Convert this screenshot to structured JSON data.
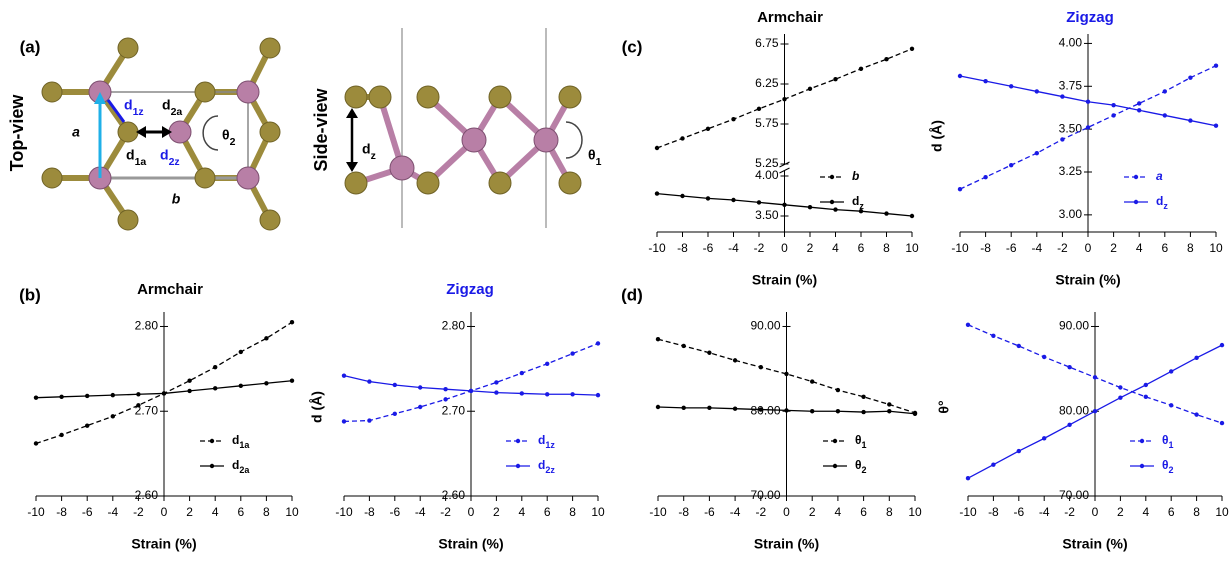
{
  "figure": {
    "panels": [
      "(a)",
      "(b)",
      "(c)",
      "(d)"
    ],
    "top_view": {
      "title": "Top-view",
      "a": "a",
      "b": "b",
      "d1z": "d1z",
      "d2a": "d2a",
      "d1a": "d1a",
      "d2z": "d2z",
      "theta2": "θ2"
    },
    "side_view": {
      "title": "Side-view",
      "dz": "dz",
      "theta1": "θ1"
    }
  },
  "chart_data": [
    {
      "type": "line",
      "title": "Armchair",
      "title_color": "#000000",
      "xlabel": "Strain (%)",
      "x": [
        -10,
        -8,
        -6,
        -4,
        -2,
        0,
        2,
        4,
        6,
        8,
        10
      ],
      "xlim": [
        -10,
        10
      ],
      "xticks": [
        -10,
        -8,
        -6,
        -4,
        -2,
        0,
        2,
        4,
        6,
        8,
        10
      ],
      "ylim": [
        2.6,
        2.81
      ],
      "yticks": [
        {
          "value": 2.6,
          "label": "2.60"
        },
        {
          "value": 2.7,
          "label": "2.70"
        },
        {
          "value": 2.8,
          "label": "2.80"
        }
      ],
      "legend": "lower right",
      "series": [
        {
          "name": "d1a",
          "color": "#000000",
          "linestyle": "dashed",
          "values": [
            2.662,
            2.672,
            2.683,
            2.694,
            2.707,
            2.721,
            2.736,
            2.752,
            2.77,
            2.786,
            2.805
          ]
        },
        {
          "name": "d2a",
          "color": "#000000",
          "linestyle": "solid",
          "values": [
            2.716,
            2.717,
            2.718,
            2.719,
            2.72,
            2.721,
            2.724,
            2.727,
            2.73,
            2.733,
            2.736
          ]
        }
      ]
    },
    {
      "type": "line",
      "title": "Zigzag",
      "title_color": "#1a1ae6",
      "xlabel": "Strain (%)",
      "ylabel": "d (Å)",
      "x": [
        -10,
        -8,
        -6,
        -4,
        -2,
        0,
        2,
        4,
        6,
        8,
        10
      ],
      "xlim": [
        -10,
        10
      ],
      "xticks": [
        -10,
        -8,
        -6,
        -4,
        -2,
        0,
        2,
        4,
        6,
        8,
        10
      ],
      "ylim": [
        2.6,
        2.81
      ],
      "yticks": [
        {
          "value": 2.6,
          "label": "2.60"
        },
        {
          "value": 2.7,
          "label": "2.70"
        },
        {
          "value": 2.8,
          "label": "2.80"
        }
      ],
      "legend": "lower right",
      "series": [
        {
          "name": "d1z",
          "color": "#1a1ae6",
          "linestyle": "dashed",
          "values": [
            2.688,
            2.689,
            2.697,
            2.705,
            2.714,
            2.724,
            2.734,
            2.745,
            2.756,
            2.768,
            2.78
          ]
        },
        {
          "name": "d2z",
          "color": "#1a1ae6",
          "linestyle": "solid",
          "values": [
            2.742,
            2.735,
            2.731,
            2.728,
            2.726,
            2.724,
            2.722,
            2.721,
            2.72,
            2.72,
            2.719
          ]
        }
      ]
    },
    {
      "type": "line",
      "title": "Armchair",
      "title_color": "#000000",
      "xlabel": "Strain (%)",
      "x": [
        -10,
        -8,
        -6,
        -4,
        -2,
        0,
        2,
        4,
        6,
        8,
        10
      ],
      "xlim": [
        -10,
        10
      ],
      "xticks": [
        -10,
        -8,
        -6,
        -4,
        -2,
        0,
        2,
        4,
        6,
        8,
        10
      ],
      "ylim": [
        3.3,
        6.8
      ],
      "ybreak": [
        4.1,
        5.2
      ],
      "yticks": [
        {
          "value": 3.5,
          "label": "3.50"
        },
        {
          "value": 4.0,
          "label": "4.00"
        },
        {
          "value": 5.25,
          "label": "5.25"
        },
        {
          "value": 5.75,
          "label": "5.75"
        },
        {
          "value": 6.25,
          "label": "6.25"
        },
        {
          "value": 6.75,
          "label": "6.75"
        }
      ],
      "legend": "lower right",
      "series": [
        {
          "name": "b",
          "color": "#000000",
          "linestyle": "dashed",
          "values": [
            5.45,
            5.57,
            5.69,
            5.81,
            5.94,
            6.06,
            6.19,
            6.31,
            6.44,
            6.56,
            6.69
          ]
        },
        {
          "name": "dz",
          "color": "#000000",
          "linestyle": "solid",
          "values": [
            3.78,
            3.75,
            3.72,
            3.7,
            3.67,
            3.64,
            3.61,
            3.58,
            3.56,
            3.53,
            3.5
          ]
        }
      ]
    },
    {
      "type": "line",
      "title": "Zigzag",
      "title_color": "#1a1ae6",
      "xlabel": "Strain (%)",
      "ylabel": "d (Å)",
      "x": [
        -10,
        -8,
        -6,
        -4,
        -2,
        0,
        2,
        4,
        6,
        8,
        10
      ],
      "xlim": [
        -10,
        10
      ],
      "xticks": [
        -10,
        -8,
        -6,
        -4,
        -2,
        0,
        2,
        4,
        6,
        8,
        10
      ],
      "ylim": [
        2.9,
        4.02
      ],
      "yticks": [
        {
          "value": 3.0,
          "label": "3.00"
        },
        {
          "value": 3.25,
          "label": "3.25"
        },
        {
          "value": 3.5,
          "label": "3.50"
        },
        {
          "value": 3.75,
          "label": "3.75"
        },
        {
          "value": 4.0,
          "label": "4.00"
        }
      ],
      "legend": "lower right",
      "series": [
        {
          "name": "a",
          "color": "#1a1ae6",
          "linestyle": "dashed",
          "values": [
            3.15,
            3.22,
            3.29,
            3.36,
            3.44,
            3.51,
            3.58,
            3.65,
            3.72,
            3.8,
            3.87
          ]
        },
        {
          "name": "dz",
          "color": "#1a1ae6",
          "linestyle": "solid",
          "values": [
            3.81,
            3.78,
            3.75,
            3.72,
            3.69,
            3.66,
            3.64,
            3.61,
            3.58,
            3.55,
            3.52
          ]
        }
      ]
    },
    {
      "type": "line",
      "xlabel": "Strain (%)",
      "x": [
        -10,
        -8,
        -6,
        -4,
        -2,
        0,
        2,
        4,
        6,
        8,
        10
      ],
      "xlim": [
        -10,
        10
      ],
      "xticks": [
        -10,
        -8,
        -6,
        -4,
        -2,
        0,
        2,
        4,
        6,
        8,
        10
      ],
      "ylim": [
        70,
        91
      ],
      "yticks": [
        {
          "value": 70,
          "label": "70.00"
        },
        {
          "value": 80,
          "label": "80.00"
        },
        {
          "value": 90,
          "label": "90.00"
        }
      ],
      "legend": "lower right",
      "series": [
        {
          "name": "θ1",
          "color": "#000000",
          "linestyle": "dashed",
          "values": [
            88.5,
            87.7,
            86.9,
            86.0,
            85.2,
            84.4,
            83.5,
            82.5,
            81.7,
            80.8,
            79.8
          ]
        },
        {
          "name": "θ2",
          "color": "#000000",
          "linestyle": "solid",
          "values": [
            80.5,
            80.4,
            80.4,
            80.3,
            80.2,
            80.1,
            80.0,
            80.0,
            79.9,
            80.0,
            79.7
          ]
        }
      ]
    },
    {
      "type": "line",
      "xlabel": "Strain (%)",
      "ylabel": "θ°",
      "x": [
        -10,
        -8,
        -6,
        -4,
        -2,
        0,
        2,
        4,
        6,
        8,
        10
      ],
      "xlim": [
        -10,
        10
      ],
      "xticks": [
        -10,
        -8,
        -6,
        -4,
        -2,
        0,
        2,
        4,
        6,
        8,
        10
      ],
      "ylim": [
        70,
        91
      ],
      "yticks": [
        {
          "value": 70,
          "label": "70.00"
        },
        {
          "value": 80,
          "label": "80.00"
        },
        {
          "value": 90,
          "label": "90.00"
        }
      ],
      "legend": "lower right",
      "series": [
        {
          "name": "θ1",
          "color": "#1a1ae6",
          "linestyle": "dashed",
          "values": [
            90.2,
            88.9,
            87.7,
            86.4,
            85.2,
            84.0,
            82.8,
            81.7,
            80.7,
            79.6,
            78.6
          ]
        },
        {
          "name": "θ2",
          "color": "#1a1ae6",
          "linestyle": "solid",
          "values": [
            72.1,
            73.7,
            75.3,
            76.8,
            78.4,
            80.0,
            81.6,
            83.1,
            84.7,
            86.3,
            87.8
          ]
        }
      ]
    }
  ]
}
